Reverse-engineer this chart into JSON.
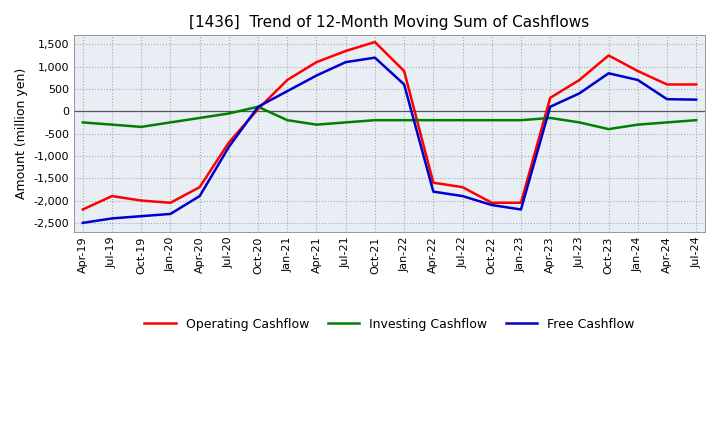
{
  "title": "[1436]  Trend of 12-Month Moving Sum of Cashflows",
  "ylabel": "Amount (million yen)",
  "ylim": [
    -2700,
    1700
  ],
  "yticks": [
    -2500,
    -2000,
    -1500,
    -1000,
    -500,
    0,
    500,
    1000,
    1500
  ],
  "x_labels": [
    "Apr-19",
    "Jul-19",
    "Oct-19",
    "Jan-20",
    "Apr-20",
    "Jul-20",
    "Oct-20",
    "Jan-21",
    "Apr-21",
    "Jul-21",
    "Oct-21",
    "Jan-22",
    "Apr-22",
    "Jul-22",
    "Oct-22",
    "Jan-23",
    "Apr-23",
    "Jul-23",
    "Oct-23",
    "Jan-24",
    "Apr-24",
    "Jul-24"
  ],
  "operating": [
    -2200,
    -1900,
    -2000,
    -2050,
    -1700,
    -700,
    50,
    700,
    1100,
    1350,
    1550,
    900,
    -1600,
    -1700,
    -2050,
    -2050,
    300,
    700,
    1250,
    900,
    600,
    600
  ],
  "investing": [
    -250,
    -300,
    -350,
    -250,
    -150,
    -50,
    100,
    -200,
    -300,
    -250,
    -200,
    -200,
    -200,
    -200,
    -200,
    -200,
    -150,
    -250,
    -400,
    -300,
    -250,
    -200
  ],
  "free": [
    -2500,
    -2400,
    -2350,
    -2300,
    -1900,
    -800,
    100,
    450,
    800,
    1100,
    1200,
    600,
    -1800,
    -1900,
    -2100,
    -2200,
    100,
    400,
    850,
    700,
    270,
    260
  ],
  "line_colors": {
    "operating": "#ff0000",
    "investing": "#008000",
    "free": "#0000cc"
  },
  "legend_labels": [
    "Operating Cashflow",
    "Investing Cashflow",
    "Free Cashflow"
  ],
  "grid_color": "#aaaaaa",
  "plot_bg_color": "#e8eef4",
  "background_color": "#ffffff",
  "title_fontsize": 11,
  "label_fontsize": 9,
  "tick_fontsize": 8
}
